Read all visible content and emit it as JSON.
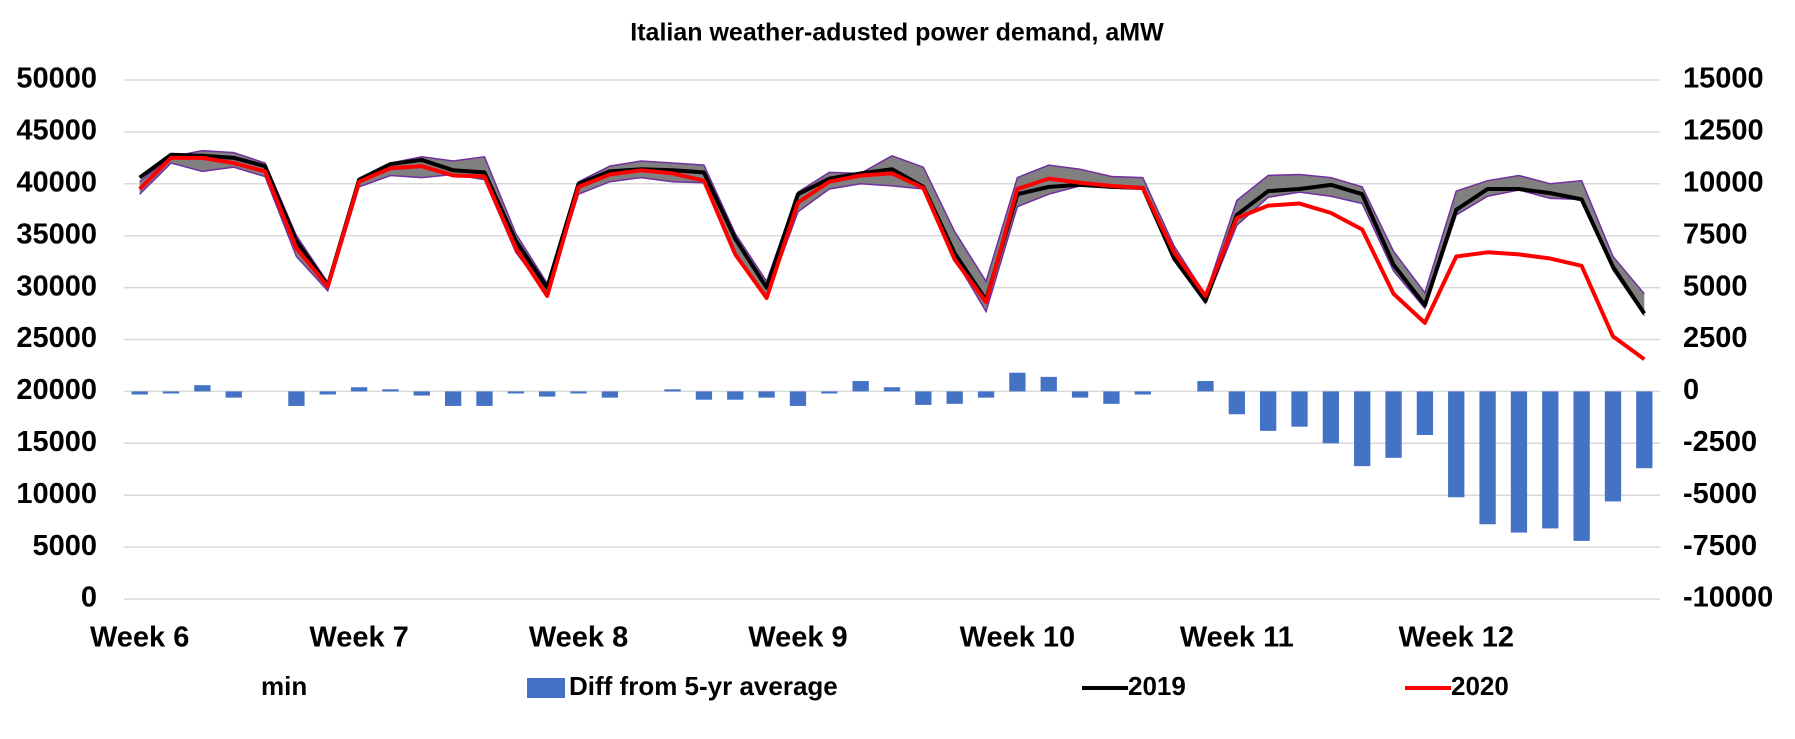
{
  "chart_data": {
    "type": "line",
    "title": "Italian weather-adusted power demand, aMW",
    "categories": [
      "Week 6",
      null,
      null,
      null,
      null,
      null,
      null,
      "Week 7",
      null,
      null,
      null,
      null,
      null,
      null,
      "Week 8",
      null,
      null,
      null,
      null,
      null,
      null,
      "Week 9",
      null,
      null,
      null,
      null,
      null,
      null,
      "Week 10",
      null,
      null,
      null,
      null,
      null,
      null,
      "Week 11",
      null,
      null,
      null,
      null,
      null,
      null,
      "Week 12",
      null,
      null,
      null,
      null,
      null,
      null
    ],
    "ylim": [
      0,
      50000
    ],
    "yticks": [
      0,
      5000,
      10000,
      15000,
      20000,
      25000,
      30000,
      35000,
      40000,
      45000,
      50000
    ],
    "y2lim": [
      -10000,
      15000
    ],
    "y2ticks": [
      -10000,
      -7500,
      -5000,
      -2500,
      0,
      2500,
      5000,
      7500,
      10000,
      12500,
      15000
    ],
    "grid": true,
    "legend": "bottom",
    "band": {
      "color": "#808080",
      "values": [
        40200,
        42600,
        43200,
        43000,
        42000,
        35000,
        30500,
        40500,
        42000,
        42600,
        42200,
        42600,
        35200,
        30400,
        40200,
        41700,
        42200,
        42000,
        41800,
        35200,
        30600,
        39200,
        41100,
        41000,
        42700,
        41600,
        35400,
        30600,
        40600,
        41800,
        41400,
        40700,
        40600,
        34000,
        29300,
        38400,
        40800,
        40900,
        40600,
        39700,
        33500,
        29500,
        39300,
        40300,
        40800,
        40000,
        40300,
        33000,
        29400
      ]
    },
    "series": [
      {
        "name": "min",
        "type": "area",
        "color": "#7030a0",
        "values": [
          39000,
          42000,
          41200,
          41600,
          40700,
          33000,
          29700,
          39700,
          40800,
          40600,
          40900,
          40400,
          33400,
          29400,
          39000,
          40200,
          40600,
          40200,
          40100,
          33000,
          29100,
          37300,
          39500,
          40000,
          39800,
          39500,
          32800,
          27700,
          37800,
          39000,
          39800,
          39600,
          39500,
          32600,
          28500,
          36000,
          38700,
          39200,
          38800,
          38100,
          31600,
          28000,
          37000,
          38800,
          39400,
          38600,
          38500,
          31700,
          27300
        ]
      },
      {
        "name": "Diff from 5-yr average",
        "type": "bar",
        "axis": "y2",
        "color": "#4472c4",
        "values": [
          -150,
          -100,
          300,
          -300,
          0,
          -700,
          -150,
          200,
          100,
          -200,
          -700,
          -700,
          -100,
          -250,
          -100,
          -300,
          0,
          100,
          -400,
          -400,
          -300,
          -700,
          -100,
          500,
          200,
          -650,
          -600,
          -300,
          900,
          700,
          -300,
          -600,
          -150,
          0,
          500,
          -1100,
          -1900,
          -1700,
          -2500,
          -3600,
          -3200,
          -2100,
          -5100,
          -6400,
          -6800,
          -6600,
          -7200,
          -5300,
          -3700
        ]
      },
      {
        "name": "2019",
        "type": "line",
        "color": "#000000",
        "values": [
          40600,
          42800,
          42700,
          42500,
          41700,
          34500,
          30200,
          40400,
          41900,
          42300,
          41300,
          41100,
          34500,
          30000,
          40000,
          41200,
          41400,
          41300,
          41100,
          34700,
          30000,
          39000,
          40500,
          41000,
          41400,
          39700,
          33300,
          28800,
          39000,
          39700,
          39900,
          39700,
          39600,
          32800,
          28700,
          37000,
          39300,
          39500,
          39900,
          39000,
          32200,
          28300,
          37500,
          39500,
          39500,
          39100,
          38500,
          32000,
          27500
        ]
      },
      {
        "name": "2020",
        "type": "line",
        "color": "#ff0000",
        "values": [
          39500,
          42500,
          42500,
          42000,
          41200,
          33800,
          30100,
          40200,
          41500,
          41700,
          40800,
          40700,
          33800,
          29200,
          39700,
          40900,
          41300,
          41000,
          40300,
          33200,
          29000,
          38200,
          40200,
          40800,
          41000,
          39600,
          32700,
          28600,
          39500,
          40500,
          40100,
          39800,
          39600,
          33400,
          29200,
          36700,
          37900,
          38100,
          37200,
          35600,
          29400,
          26600,
          33000,
          33400,
          33200,
          32800,
          32100,
          25300,
          23100
        ]
      }
    ]
  }
}
